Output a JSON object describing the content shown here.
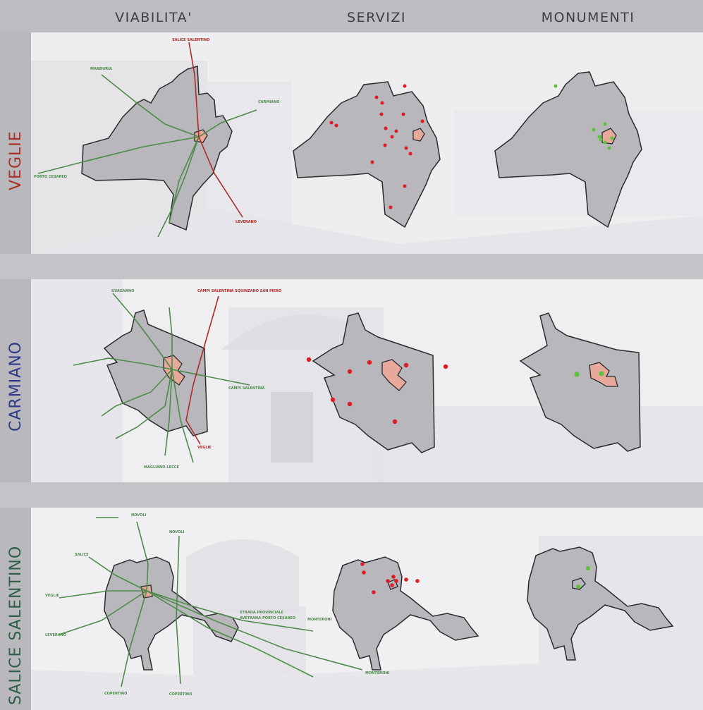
{
  "columns": [
    "VIABILITA'",
    "SERVIZI",
    "MONUMENTI"
  ],
  "rows": [
    {
      "name": "VEGLIE",
      "color": "#a8322a"
    },
    {
      "name": "CARMIANO",
      "color": "#2f3a86"
    },
    {
      "name": "SALICE SALENTINO",
      "color": "#2f5f48"
    }
  ],
  "road_colors": {
    "provincial": "#4f8a4b",
    "state": "#b02a24"
  },
  "marker_colors": {
    "services": "#e01b24",
    "monuments": "#59c437"
  },
  "roads": {
    "veglie": [
      "SALICE SALENTINO",
      "MANDURIA",
      "CARMIANO",
      "PORTO CESAREO",
      "LEVERANO"
    ],
    "carmiano": [
      "CAMPI SALENTINA SQUINZANO SAN PIERO",
      "GUAGNANO",
      "CAMPI SALENTINA",
      "VEGLIE",
      "MAGLIANO-LECCE"
    ],
    "salice": [
      "NOVOLI",
      "NOVOLI",
      "SALICE",
      "VEGLIE",
      "LEVERANO",
      "COPERTINO",
      "COPERTINO",
      "STRADA PROVINCIALE",
      "AVETRANA-PORTO CESAREO",
      "MONTERONI",
      "MONTERONI"
    ]
  }
}
